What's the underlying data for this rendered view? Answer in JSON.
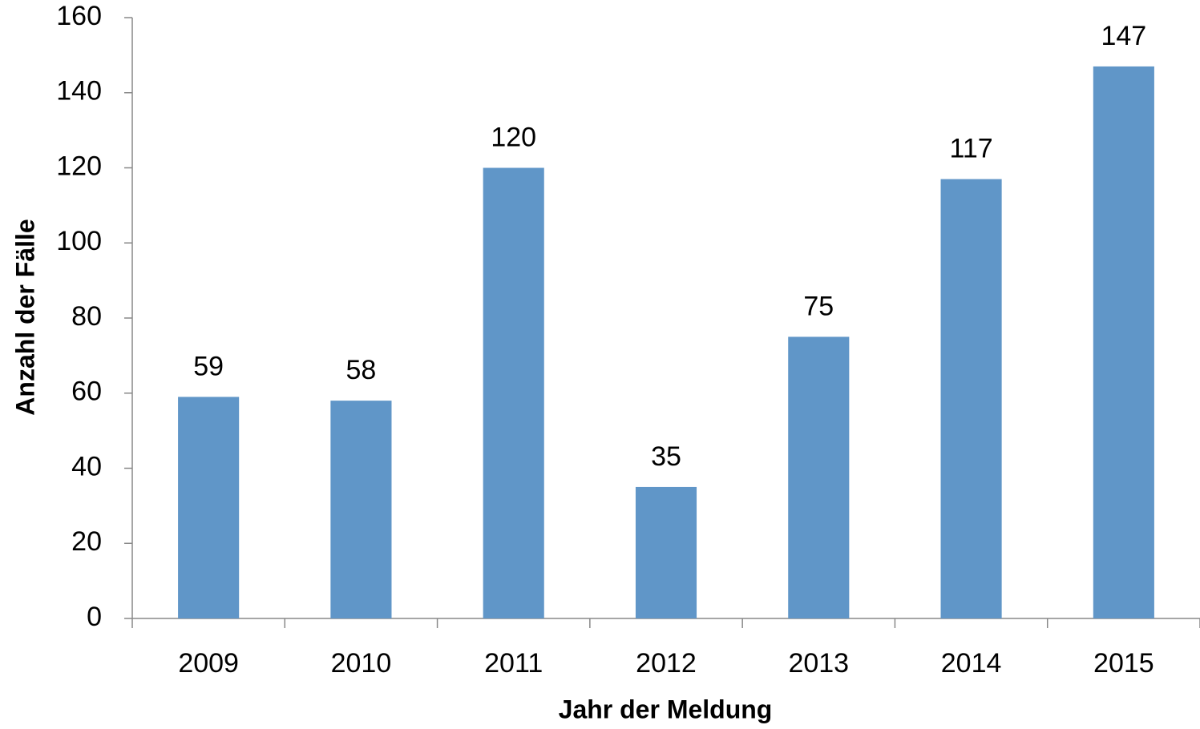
{
  "chart_data": {
    "type": "bar",
    "x_label": "Jahr der Meldung",
    "y_label": "Anzahl der Fälle",
    "categories": [
      "2009",
      "2010",
      "2011",
      "2012",
      "2013",
      "2014",
      "2015"
    ],
    "values": [
      59,
      58,
      120,
      35,
      75,
      117,
      147
    ],
    "color": "#6096c8",
    "ylim": [
      0,
      160
    ],
    "yticks": [
      0,
      20,
      40,
      60,
      80,
      100,
      120,
      140,
      160
    ],
    "grid": false
  }
}
